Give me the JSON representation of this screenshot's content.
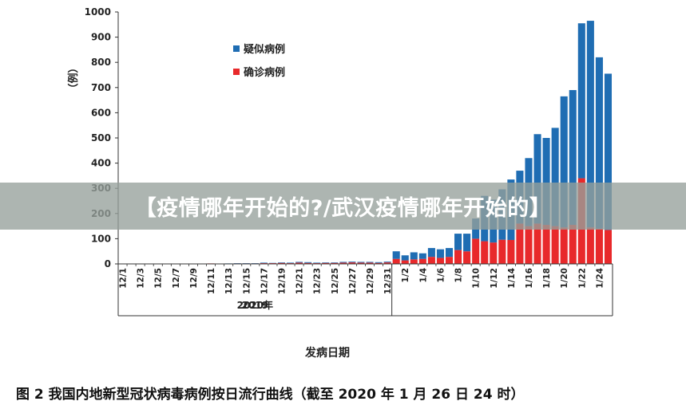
{
  "banner": {
    "title": "【疫情哪年开始的?/武汉疫情哪年开始的】"
  },
  "caption": "图 2   我国内地新型冠状病毒病例按日流行曲线（截至 2020 年 1 月 26 日 24 时）",
  "colors": {
    "suspected": "#1f6db3",
    "confirmed": "#e8292b",
    "axis": "#333333"
  },
  "chart_data": {
    "type": "bar",
    "stacked": true,
    "ylabel": "（例）",
    "xlabel": "发病日期",
    "ylim": [
      0,
      1000
    ],
    "yticks": [
      0,
      100,
      200,
      300,
      400,
      500,
      600,
      700,
      800,
      900,
      1000
    ],
    "legend": {
      "position": "top-left",
      "entries": [
        "疑似病例",
        "确诊病例"
      ]
    },
    "groups": [
      {
        "label": "2019",
        "from": "12/1",
        "to": "12/31"
      },
      {
        "label": "2020年",
        "from": "1/1",
        "to": "1/26"
      }
    ],
    "categories": [
      "12/1",
      "12/2",
      "12/3",
      "12/4",
      "12/5",
      "12/6",
      "12/7",
      "12/8",
      "12/9",
      "12/10",
      "12/11",
      "12/12",
      "12/13",
      "12/14",
      "12/15",
      "12/16",
      "12/17",
      "12/18",
      "12/19",
      "12/20",
      "12/21",
      "12/22",
      "12/23",
      "12/24",
      "12/25",
      "12/26",
      "12/27",
      "12/28",
      "12/29",
      "12/30",
      "12/31",
      "1/1",
      "1/2",
      "1/3",
      "1/4",
      "1/5",
      "1/6",
      "1/7",
      "1/8",
      "1/9",
      "1/10",
      "1/11",
      "1/12",
      "1/13",
      "1/14",
      "1/15",
      "1/16",
      "1/17",
      "1/18",
      "1/19",
      "1/20",
      "1/21",
      "1/22",
      "1/23",
      "1/24",
      "1/25"
    ],
    "tick_labels": [
      "12/1",
      "12/3",
      "12/5",
      "12/7",
      "12/9",
      "12/11",
      "12/13",
      "12/15",
      "12/17",
      "12/19",
      "12/21",
      "12/23",
      "12/25",
      "12/27",
      "12/29",
      "12/31",
      "1/2",
      "1/4",
      "1/6",
      "1/8",
      "1/10",
      "1/12",
      "1/14",
      "1/16",
      "1/18",
      "1/20",
      "1/22",
      "1/24"
    ],
    "series": [
      {
        "name": "确诊病例",
        "values": [
          1,
          0,
          1,
          0,
          1,
          0,
          1,
          1,
          1,
          1,
          2,
          1,
          1,
          2,
          2,
          2,
          3,
          3,
          4,
          3,
          5,
          4,
          3,
          4,
          4,
          5,
          6,
          5,
          5,
          4,
          6,
          20,
          14,
          18,
          20,
          28,
          24,
          28,
          55,
          50,
          100,
          90,
          85,
          96,
          95,
          160,
          150,
          160,
          155,
          150,
          145,
          155,
          340,
          145,
          140,
          135
        ]
      },
      {
        "name": "疑似病例",
        "values": [
          0,
          0,
          0,
          0,
          0,
          0,
          0,
          0,
          0,
          0,
          0,
          0,
          1,
          1,
          1,
          1,
          2,
          1,
          2,
          2,
          3,
          3,
          2,
          2,
          2,
          3,
          3,
          3,
          3,
          3,
          3,
          30,
          20,
          28,
          22,
          35,
          34,
          35,
          65,
          70,
          80,
          180,
          170,
          200,
          240,
          210,
          270,
          355,
          345,
          390,
          520,
          535,
          615,
          820,
          680,
          620
        ]
      }
    ]
  }
}
